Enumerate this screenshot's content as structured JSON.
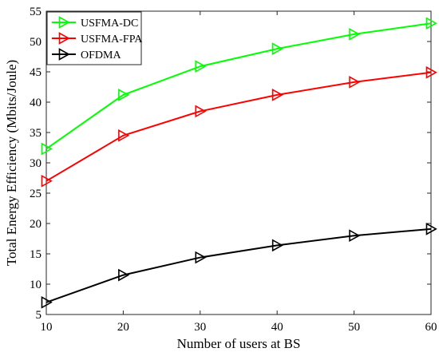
{
  "chart_data": {
    "type": "line",
    "xlabel": "Number of users at BS",
    "ylabel": "Total Energy Efficiency (Mbits/Joule)",
    "xlim": [
      10,
      60
    ],
    "ylim": [
      5,
      55
    ],
    "x_ticks": [
      10,
      20,
      30,
      40,
      50,
      60
    ],
    "y_ticks": [
      5,
      10,
      15,
      20,
      25,
      30,
      35,
      40,
      45,
      50,
      55
    ],
    "grid": false,
    "legend_position": "top-left",
    "x": [
      10,
      20,
      30,
      40,
      50,
      60
    ],
    "series": [
      {
        "name": "USFMA-DC",
        "color": "#00ff00",
        "marker": "triangle-right",
        "values": [
          32.3,
          41.2,
          45.9,
          48.8,
          51.2,
          53.0
        ]
      },
      {
        "name": "USFMA-FPA",
        "color": "#ff0000",
        "marker": "triangle-right",
        "values": [
          27.0,
          34.5,
          38.5,
          41.2,
          43.3,
          44.9
        ]
      },
      {
        "name": "OFDMA",
        "color": "#000000",
        "marker": "triangle-right",
        "values": [
          7.0,
          11.5,
          14.4,
          16.4,
          18.0,
          19.1
        ]
      }
    ]
  }
}
